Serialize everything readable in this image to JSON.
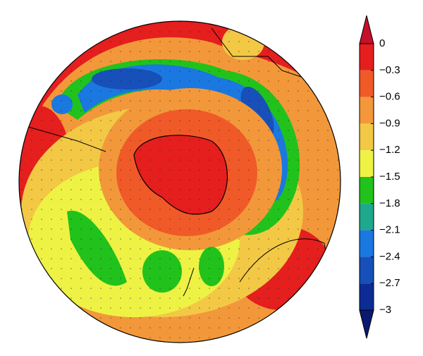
{
  "colorbar": {
    "ticks": [
      0,
      {
        "value": -0.3,
        "label": "−0.3"
      },
      {
        "value": -0.6,
        "label": "−0.6"
      },
      {
        "value": -0.9,
        "label": "−0.9"
      },
      {
        "value": -1.2,
        "label": "−1.2"
      },
      {
        "value": -1.5,
        "label": "−1.5"
      },
      {
        "value": -1.8,
        "label": "−1.8"
      },
      {
        "value": -2.1,
        "label": "−2.1"
      },
      {
        "value": -2.4,
        "label": "−2.4"
      },
      {
        "value": -2.7,
        "label": "−2.7"
      },
      {
        "value": -3,
        "label": "−3"
      }
    ],
    "colors": [
      "#c4102a",
      "#e51e1e",
      "#f05a28",
      "#f2983a",
      "#f3c845",
      "#eef244",
      "#22c21c",
      "#1ea88c",
      "#1a78e0",
      "#1650b8",
      "#0c2c94",
      "#0a1a70"
    ]
  }
}
